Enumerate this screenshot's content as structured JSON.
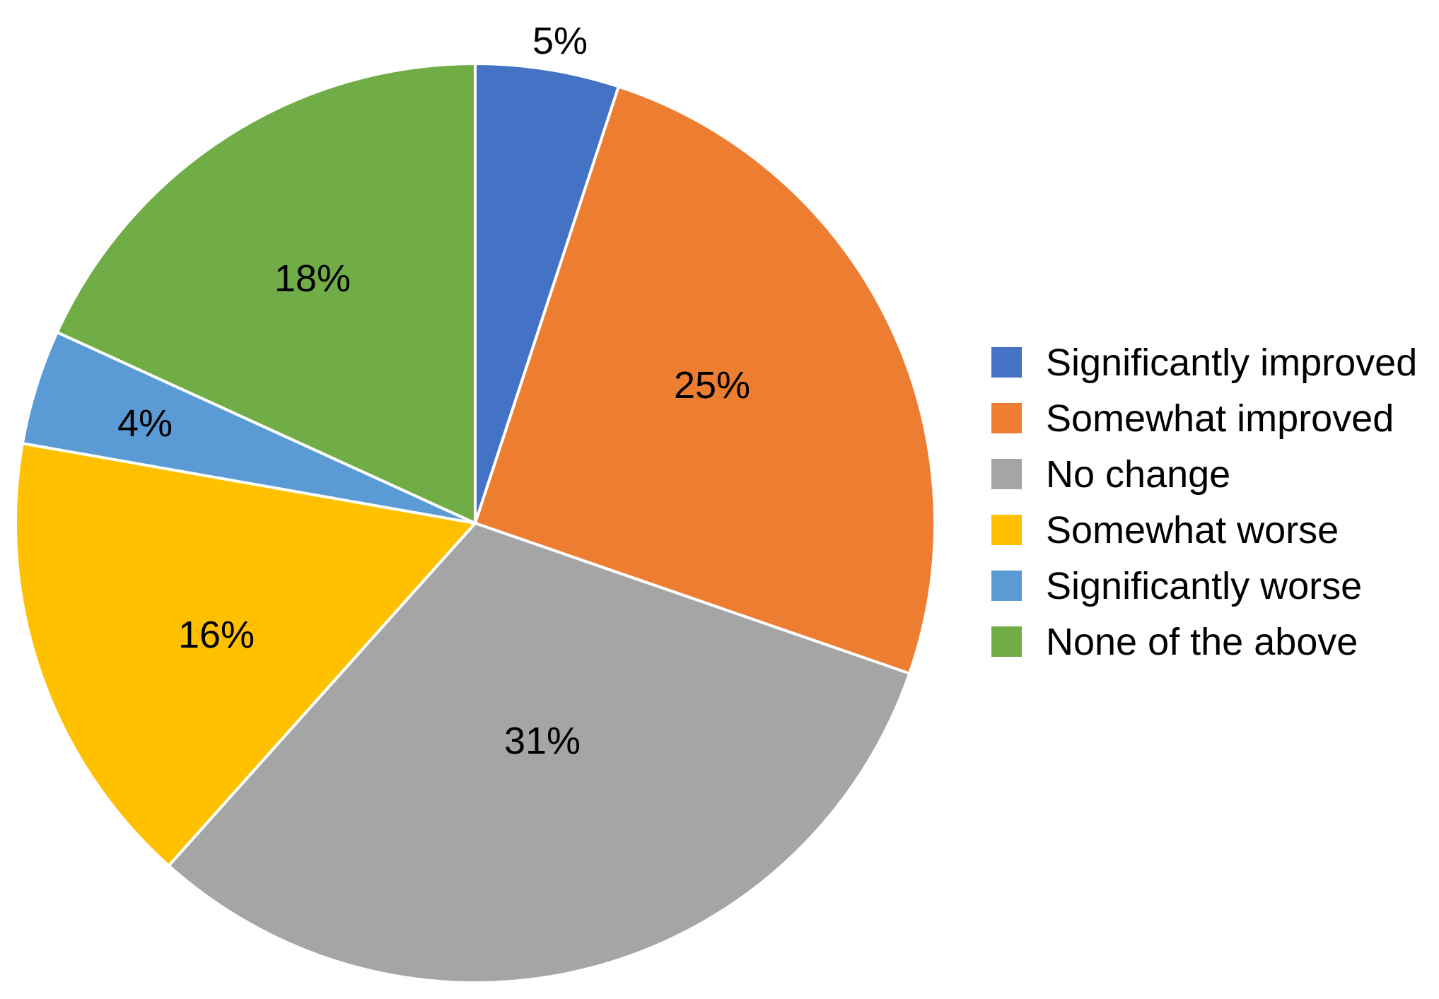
{
  "chart_data": {
    "type": "pie",
    "title": "",
    "start_angle_deg": 0,
    "direction": "clockwise",
    "legend_position": "right",
    "slices": [
      {
        "label": "Significantly improved",
        "value": 5,
        "value_label": "5%",
        "color": "#4472C4"
      },
      {
        "label": "Somewhat improved",
        "value": 25,
        "value_label": "25%",
        "color": "#ED7D31"
      },
      {
        "label": "No change",
        "value": 31,
        "value_label": "31%",
        "color": "#A5A5A5"
      },
      {
        "label": "Somewhat worse",
        "value": 16,
        "value_label": "16%",
        "color": "#FFC000"
      },
      {
        "label": "Significantly worse",
        "value": 4,
        "value_label": "4%",
        "color": "#5B9BD5"
      },
      {
        "label": "None of the above",
        "value": 18,
        "value_label": "18%",
        "color": "#70AD47"
      }
    ]
  }
}
